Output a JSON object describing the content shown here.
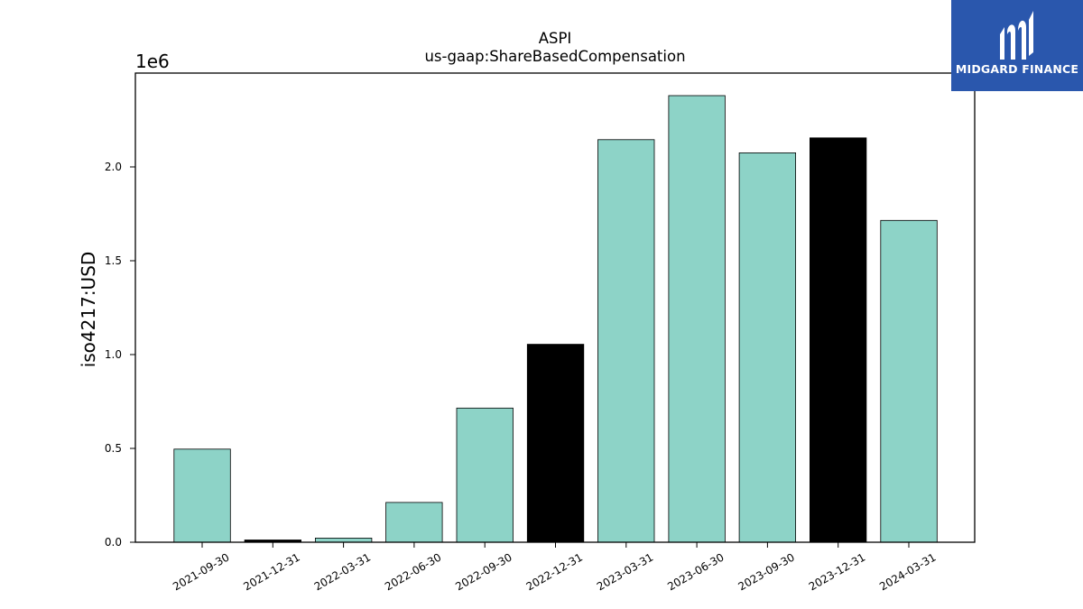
{
  "chart_data": {
    "type": "bar",
    "title": "ASPI",
    "subtitle": "us-gaap:ShareBasedCompensation",
    "ylabel": "iso4217:USD",
    "xlabel": "",
    "offset_label": "1e6",
    "categories": [
      "2021-09-30",
      "2021-12-31",
      "2022-03-31",
      "2022-06-30",
      "2022-09-30",
      "2022-12-31",
      "2023-03-31",
      "2023-06-30",
      "2023-09-30",
      "2023-12-31",
      "2024-03-31"
    ],
    "values": [
      496000,
      12000,
      22000,
      212000,
      715000,
      1055000,
      2145000,
      2380000,
      2075000,
      2155000,
      1715000
    ],
    "bar_colors": [
      "#8dd3c7",
      "#000000",
      "#8dd3c7",
      "#8dd3c7",
      "#8dd3c7",
      "#000000",
      "#8dd3c7",
      "#8dd3c7",
      "#8dd3c7",
      "#000000",
      "#8dd3c7"
    ],
    "yticks": [
      0,
      500000,
      1000000,
      1500000,
      2000000
    ],
    "ytick_labels": [
      "0.0",
      "0.5",
      "1.0",
      "1.5",
      "2.0"
    ],
    "ylim": [
      0,
      2500000
    ],
    "grid": false,
    "legend": "none"
  },
  "logo": {
    "text": "MIDGARD FINANCE",
    "background": "#2a57ad",
    "icon": "midgard-finance-logo-icon"
  }
}
